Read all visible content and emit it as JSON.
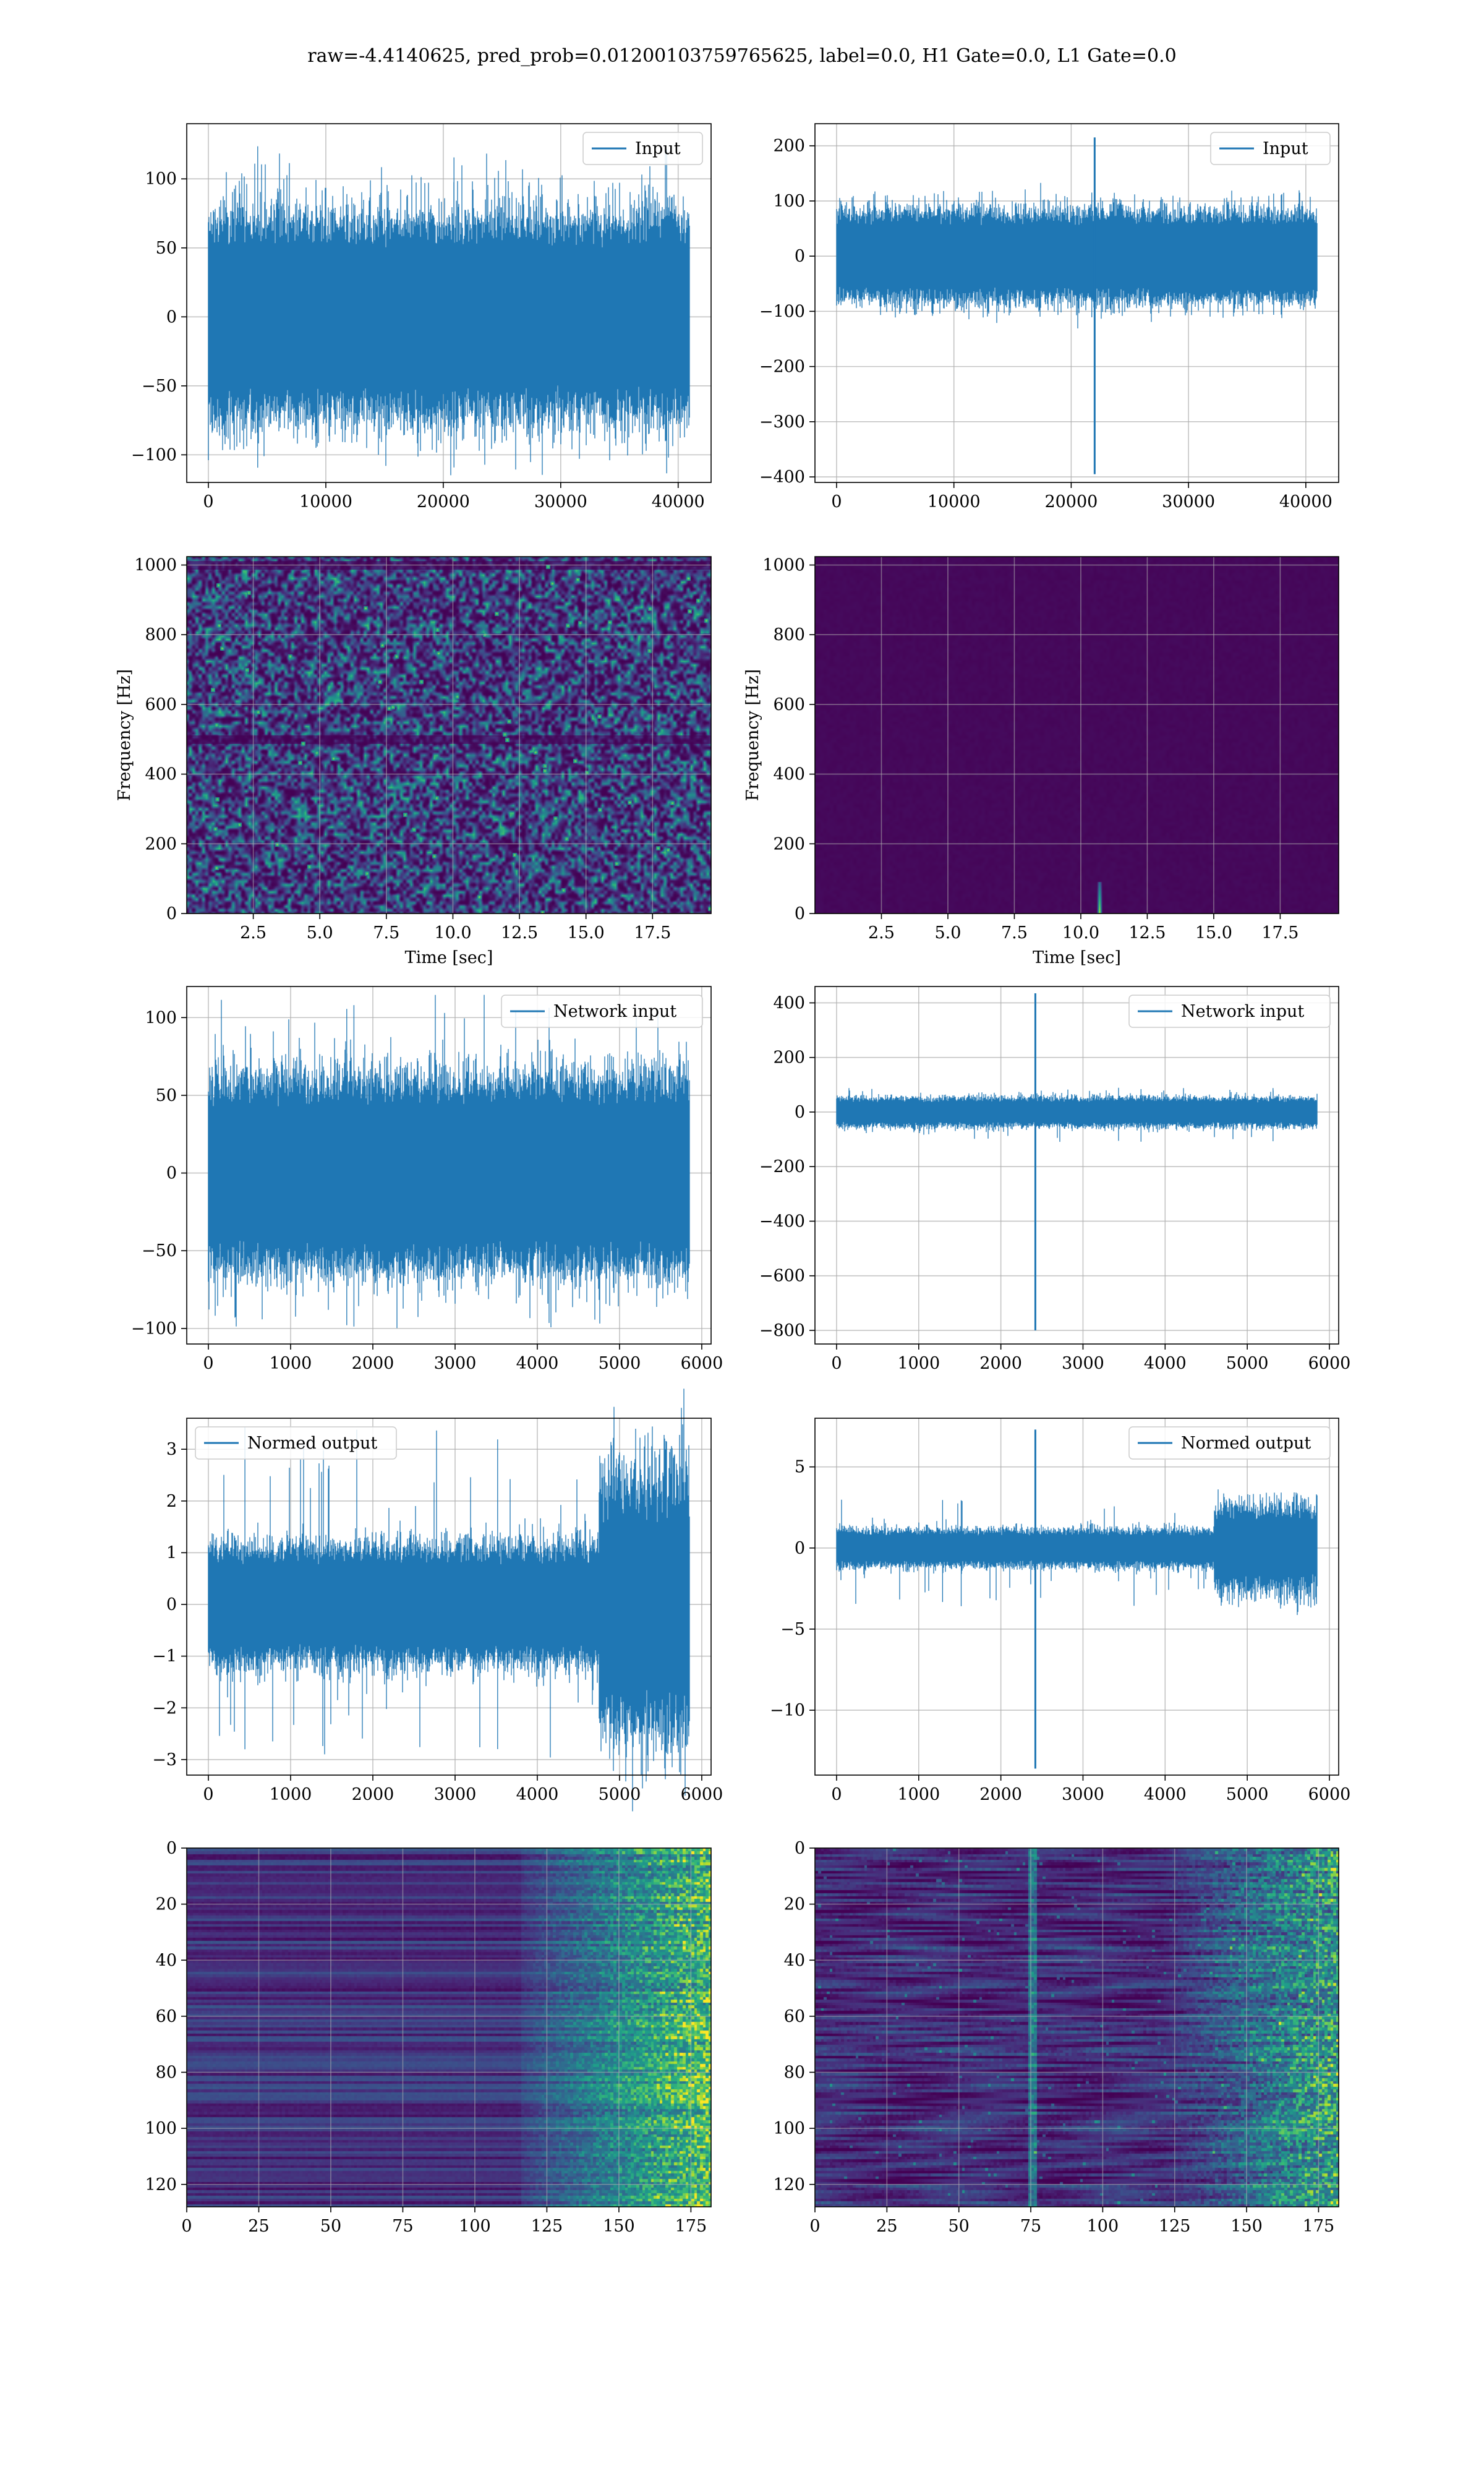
{
  "figure": {
    "suptitle": "raw=-4.4140625, pred_prob=0.01200103759765625, label=0.0, H1 Gate=0.0, L1 Gate=0.0"
  },
  "colors": {
    "line": "#1f77b4",
    "grid": "#b0b0b0",
    "viridis_dark": "#440154",
    "viridis_blue": "#3b528b",
    "viridis_teal": "#21918c",
    "viridis_green": "#5ec962",
    "viridis_yellow": "#fde725"
  },
  "chart_data": [
    {
      "id": "input-left",
      "type": "line",
      "series": [
        {
          "name": "Input",
          "values": []
        }
      ],
      "x_range": [
        0,
        40960
      ],
      "ylim": [
        -120,
        140
      ],
      "xticks": [
        "0",
        "10000",
        "20000",
        "30000",
        "40000"
      ],
      "xtick_values": [
        0,
        10000,
        20000,
        30000,
        40000
      ],
      "yticks": [
        "100",
        "50",
        "0",
        "−50",
        "−100"
      ],
      "ytick_values": [
        100,
        50,
        0,
        -50,
        -100
      ],
      "envelope": {
        "band": 58,
        "peak": 128,
        "trough": -115
      },
      "legend": "upper right",
      "grid": true,
      "xlabel": "",
      "ylabel": ""
    },
    {
      "id": "input-right",
      "type": "line",
      "series": [
        {
          "name": "Input",
          "values": []
        }
      ],
      "x_range": [
        0,
        40960
      ],
      "ylim": [
        -410,
        240
      ],
      "xticks": [
        "0",
        "10000",
        "20000",
        "30000",
        "40000"
      ],
      "xtick_values": [
        0,
        10000,
        20000,
        30000,
        40000
      ],
      "yticks": [
        "200",
        "100",
        "0",
        "−100",
        "−200",
        "−300",
        "−400"
      ],
      "ytick_values": [
        200,
        100,
        0,
        -100,
        -200,
        -300,
        -400
      ],
      "envelope": {
        "band": 65,
        "peak": 120,
        "trough": -115
      },
      "spike": {
        "x": 22000,
        "max": 215,
        "min": -395
      },
      "legend": "upper right",
      "grid": true,
      "xlabel": "",
      "ylabel": ""
    },
    {
      "id": "spectrogram-left",
      "type": "heatmap",
      "xlim": [
        0,
        19.7
      ],
      "ylim": [
        0,
        1024
      ],
      "xticks": [
        "2.5",
        "5.0",
        "7.5",
        "10.0",
        "12.5",
        "15.0",
        "17.5"
      ],
      "xtick_values": [
        2.5,
        5.0,
        7.5,
        10.0,
        12.5,
        15.0,
        17.5
      ],
      "yticks": [
        "1000",
        "800",
        "600",
        "400",
        "200",
        "0"
      ],
      "ytick_values": [
        1000,
        800,
        600,
        400,
        200,
        0
      ],
      "xlabel": "Time [sec]",
      "ylabel": "Frequency [Hz]",
      "texture": "noisy",
      "dark_band_freqs": [
        500,
        1000
      ],
      "grid": true
    },
    {
      "id": "spectrogram-right",
      "type": "heatmap",
      "xlim": [
        0,
        19.7
      ],
      "ylim": [
        0,
        1024
      ],
      "xticks": [
        "2.5",
        "5.0",
        "7.5",
        "10.0",
        "12.5",
        "15.0",
        "17.5"
      ],
      "xtick_values": [
        2.5,
        5.0,
        7.5,
        10.0,
        12.5,
        15.0,
        17.5
      ],
      "yticks": [
        "1000",
        "800",
        "600",
        "400",
        "200",
        "0"
      ],
      "ytick_values": [
        1000,
        800,
        600,
        400,
        200,
        0
      ],
      "xlabel": "Time [sec]",
      "ylabel": "Frequency [Hz]",
      "texture": "dark",
      "blip": {
        "time": 10.7,
        "freq_low": 0,
        "freq_high": 90
      },
      "grid": true
    },
    {
      "id": "network-input-left",
      "type": "line",
      "series": [
        {
          "name": "Network input",
          "values": []
        }
      ],
      "x_range": [
        0,
        5850
      ],
      "ylim": [
        -110,
        120
      ],
      "xticks": [
        "0",
        "1000",
        "2000",
        "3000",
        "4000",
        "5000",
        "6000"
      ],
      "xtick_values": [
        0,
        1000,
        2000,
        3000,
        4000,
        5000,
        6000
      ],
      "yticks": [
        "100",
        "50",
        "0",
        "−50",
        "−100"
      ],
      "ytick_values": [
        100,
        50,
        0,
        -50,
        -100
      ],
      "envelope": {
        "band": 50,
        "peak": 115,
        "trough": -105
      },
      "legend": "upper right",
      "grid": true,
      "xlabel": "",
      "ylabel": ""
    },
    {
      "id": "network-input-right",
      "type": "line",
      "series": [
        {
          "name": "Network input",
          "values": []
        }
      ],
      "x_range": [
        0,
        5850
      ],
      "ylim": [
        -850,
        460
      ],
      "xticks": [
        "0",
        "1000",
        "2000",
        "3000",
        "4000",
        "5000",
        "6000"
      ],
      "xtick_values": [
        0,
        1000,
        2000,
        3000,
        4000,
        5000,
        6000
      ],
      "yticks": [
        "400",
        "200",
        "0",
        "−200",
        "−400",
        "−600",
        "−800"
      ],
      "ytick_values": [
        400,
        200,
        0,
        -200,
        -400,
        -600,
        -800
      ],
      "envelope": {
        "band": 42,
        "peak": 90,
        "trough": -110
      },
      "spike": {
        "x": 2420,
        "max": 435,
        "min": -800
      },
      "legend": "upper right",
      "grid": true,
      "xlabel": "",
      "ylabel": ""
    },
    {
      "id": "normed-output-left",
      "type": "line",
      "series": [
        {
          "name": "Normed output",
          "values": []
        }
      ],
      "x_range": [
        0,
        5850
      ],
      "ylim": [
        -3.3,
        3.6
      ],
      "xticks": [
        "0",
        "1000",
        "2000",
        "3000",
        "4000",
        "5000",
        "6000"
      ],
      "xtick_values": [
        0,
        1000,
        2000,
        3000,
        4000,
        5000,
        6000
      ],
      "yticks": [
        "3",
        "2",
        "1",
        "0",
        "−1",
        "−2",
        "−3"
      ],
      "ytick_values": [
        3,
        2,
        1,
        0,
        -1,
        -2,
        -3
      ],
      "envelope": {
        "band": 0.9,
        "peak": 3.45,
        "trough": -3.0,
        "late_start": 4750,
        "late_band": 2.2
      },
      "legend": "upper left",
      "grid": true,
      "xlabel": "",
      "ylabel": ""
    },
    {
      "id": "normed-output-right",
      "type": "line",
      "series": [
        {
          "name": "Normed output",
          "values": []
        }
      ],
      "x_range": [
        0,
        5850
      ],
      "ylim": [
        -14,
        8
      ],
      "xticks": [
        "0",
        "1000",
        "2000",
        "3000",
        "4000",
        "5000",
        "6000"
      ],
      "xtick_values": [
        0,
        1000,
        2000,
        3000,
        4000,
        5000,
        6000
      ],
      "yticks": [
        "5",
        "0",
        "−5",
        "−10"
      ],
      "ytick_values": [
        5,
        0,
        -5,
        -10
      ],
      "envelope": {
        "band": 0.9,
        "peak": 3.2,
        "trough": -3.6,
        "late_start": 4600,
        "late_band": 2.3
      },
      "spike": {
        "x": 2420,
        "max": 7.3,
        "min": -13.6
      },
      "legend": "upper right",
      "grid": true,
      "xlabel": "",
      "ylabel": ""
    },
    {
      "id": "feature-map-left",
      "type": "heatmap",
      "xlim": [
        0,
        182
      ],
      "ylim": [
        128,
        0
      ],
      "xticks": [
        "0",
        "25",
        "50",
        "75",
        "100",
        "125",
        "150",
        "175"
      ],
      "xtick_values": [
        0,
        25,
        50,
        75,
        100,
        125,
        150,
        175
      ],
      "yticks": [
        "0",
        "20",
        "40",
        "60",
        "80",
        "100",
        "120"
      ],
      "ytick_values": [
        0,
        20,
        40,
        60,
        80,
        100,
        120
      ],
      "texture": "striped",
      "bright_after": 110,
      "grid": true
    },
    {
      "id": "feature-map-right",
      "type": "heatmap",
      "xlim": [
        0,
        182
      ],
      "ylim": [
        128,
        0
      ],
      "xticks": [
        "0",
        "25",
        "50",
        "75",
        "100",
        "125",
        "150",
        "175"
      ],
      "xtick_values": [
        0,
        25,
        50,
        75,
        100,
        125,
        150,
        175
      ],
      "yticks": [
        "0",
        "20",
        "40",
        "60",
        "80",
        "100",
        "120"
      ],
      "ytick_values": [
        0,
        20,
        40,
        60,
        80,
        100,
        120
      ],
      "texture": "textured",
      "bright_after": 120,
      "glitch_col": 75,
      "grid": true
    }
  ]
}
